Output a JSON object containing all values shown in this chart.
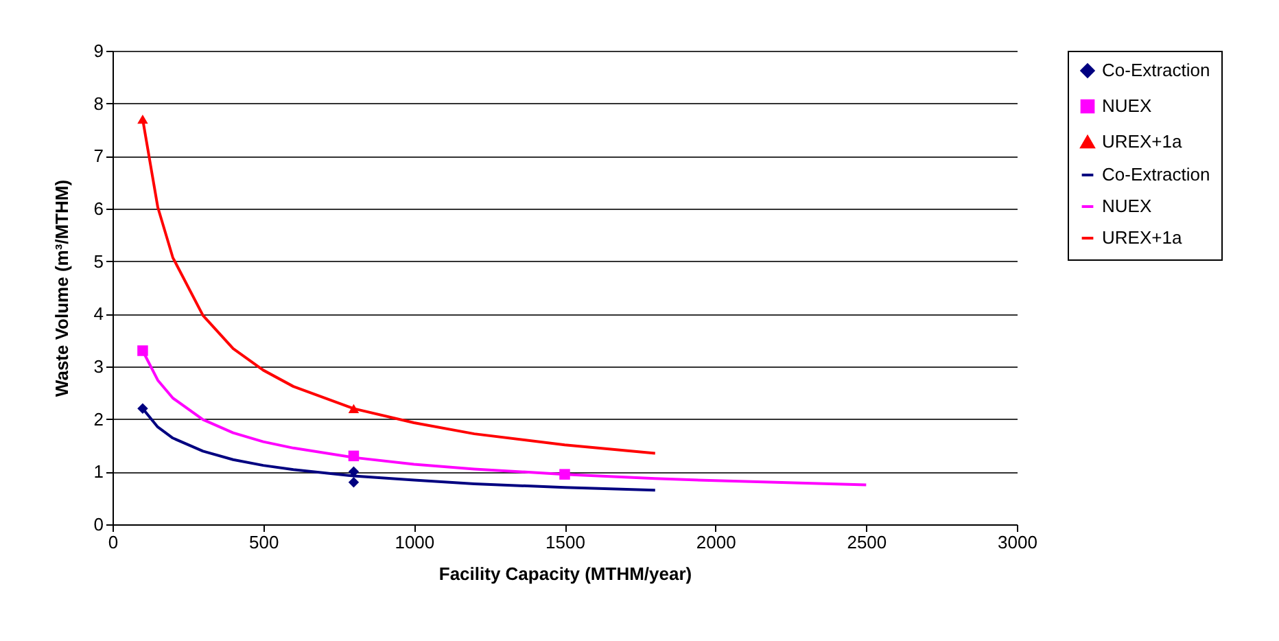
{
  "chart_data": {
    "type": "scatter",
    "xlabel": "Facility Capacity (MTHM/year)",
    "ylabel": "Waste Volume (m³/MTHM)",
    "xlim": [
      0,
      3000
    ],
    "xticks": [
      0,
      500,
      1000,
      1500,
      2000,
      2500,
      3000
    ],
    "ylim": [
      0,
      9
    ],
    "yticks": [
      0,
      1,
      2,
      3,
      4,
      5,
      6,
      7,
      8,
      9
    ],
    "grid": "y",
    "legend": "right",
    "series": [
      {
        "name": "Co-Extraction",
        "marker": "diamond",
        "color": "#000080",
        "x": [
          100,
          800,
          800
        ],
        "values": [
          2.2,
          1.0,
          0.8
        ]
      },
      {
        "name": "NUEX",
        "marker": "square",
        "color": "#ff00ff",
        "x": [
          100,
          800,
          1500
        ],
        "values": [
          3.3,
          1.3,
          0.95
        ]
      },
      {
        "name": "UREX+1a",
        "marker": "triangle",
        "color": "#ff0000",
        "x": [
          100,
          800
        ],
        "values": [
          7.7,
          2.2
        ]
      },
      {
        "name": "Co-Extraction",
        "type": "line",
        "marker": "none",
        "line_style": "solid",
        "color": "#000080",
        "x": [
          100,
          150,
          200,
          300,
          400,
          500,
          600,
          800,
          1000,
          1200,
          1500,
          1800
        ],
        "values": [
          2.2,
          1.85,
          1.64,
          1.39,
          1.23,
          1.12,
          1.04,
          0.92,
          0.84,
          0.77,
          0.7,
          0.65
        ]
      },
      {
        "name": "NUEX",
        "type": "line",
        "marker": "none",
        "line_style": "solid",
        "color": "#ff00ff",
        "x": [
          100,
          150,
          200,
          300,
          400,
          500,
          600,
          800,
          1000,
          1200,
          1500,
          1800,
          2000,
          2500
        ],
        "values": [
          3.3,
          2.74,
          2.4,
          1.99,
          1.74,
          1.57,
          1.45,
          1.27,
          1.14,
          1.05,
          0.95,
          0.87,
          0.83,
          0.75
        ]
      },
      {
        "name": "UREX+1a",
        "type": "line",
        "marker": "none",
        "line_style": "solid",
        "color": "#ff0000",
        "x": [
          100,
          150,
          200,
          300,
          400,
          500,
          600,
          800,
          1000,
          1200,
          1500,
          1800
        ],
        "values": [
          7.7,
          6.03,
          5.07,
          3.97,
          3.34,
          2.93,
          2.62,
          2.2,
          1.93,
          1.72,
          1.51,
          1.35
        ]
      }
    ]
  }
}
